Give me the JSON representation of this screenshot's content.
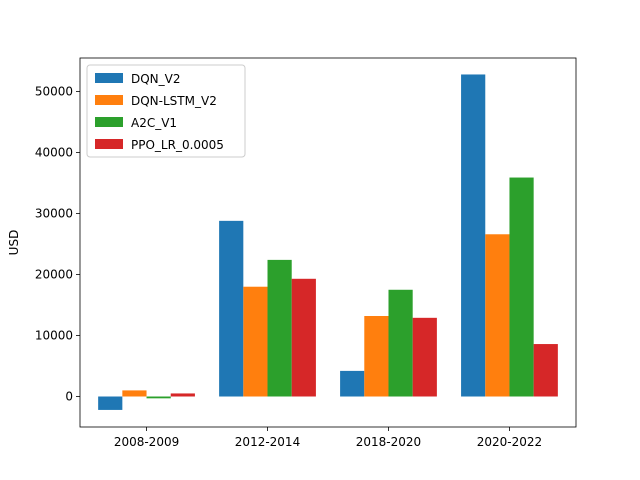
{
  "chart_data": {
    "type": "bar",
    "title": "",
    "xlabel": "",
    "ylabel": "USD",
    "categories": [
      "2008-2009",
      "2012-2014",
      "2018-2020",
      "2020-2022"
    ],
    "series": [
      {
        "name": "DQN_V2",
        "color": "#1f77b4",
        "values": [
          -2200,
          28800,
          4200,
          52800
        ]
      },
      {
        "name": "DQN-LSTM_V2",
        "color": "#ff7f0e",
        "values": [
          1000,
          18000,
          13200,
          26600
        ]
      },
      {
        "name": "A2C_V1",
        "color": "#2ca02c",
        "values": [
          -300,
          22400,
          17500,
          35900
        ]
      },
      {
        "name": "PPO_LR_0.0005",
        "color": "#d62728",
        "values": [
          500,
          19300,
          12900,
          8600
        ]
      }
    ],
    "ylim": [
      -5000,
      55500
    ],
    "yticks": [
      0,
      10000,
      20000,
      30000,
      40000,
      50000
    ],
    "legend_position": "top-left",
    "grid": false
  }
}
